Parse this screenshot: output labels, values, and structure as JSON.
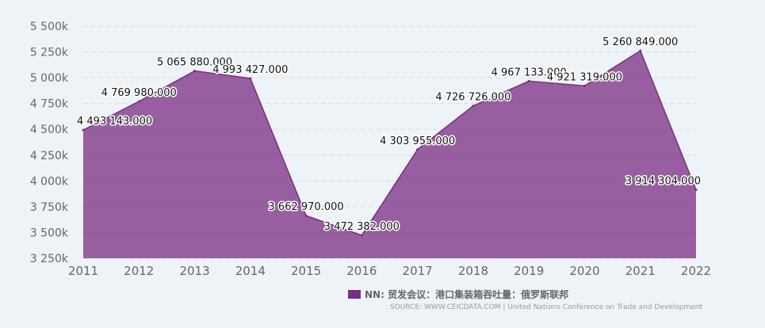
{
  "chart_data": {
    "type": "area",
    "x": [
      "2011",
      "2012",
      "2013",
      "2014",
      "2015",
      "2016",
      "2017",
      "2018",
      "2019",
      "2020",
      "2021",
      "2022"
    ],
    "series": [
      {
        "name": "NN: 贸发会议：港口集装箱吞吐量：俄罗斯联邦",
        "values": [
          4493143.0,
          4769980.0,
          5065880.0,
          4993427.0,
          3662970.0,
          3472382.0,
          4303955.0,
          4726726.0,
          4967133.0,
          4921319.0,
          5260849.0,
          3914304.0
        ],
        "labels": [
          "4 493 143.000",
          "4 769 980.000",
          "5 065 880.000",
          "4 993 427.000",
          "3 662 970.000",
          "3 472 382.000",
          "4 303 955.000",
          "4 726 726.000",
          "4 967 133.000",
          "4 921 319.000",
          "5 260 849.000",
          "3 914 304.000"
        ],
        "color": "#7b2d83"
      }
    ],
    "yticks": [
      3250000,
      3500000,
      3750000,
      4000000,
      4250000,
      4500000,
      4750000,
      5000000,
      5250000,
      5500000
    ],
    "ytick_labels": [
      "3 250k",
      "3 500k",
      "3 750k",
      "4 000k",
      "4 250k",
      "4 500k",
      "4 750k",
      "5 000k",
      "5 250k",
      "5 500k"
    ],
    "ylim": [
      3250000,
      5500000
    ],
    "grid": true,
    "legend": "bottom-right"
  },
  "footer": {
    "legend_label": "NN: 贸发会议：港口集装箱吞吐量：俄罗斯联邦",
    "source": "SOURCE: WWW.CEICDATA.COM | United Nations Conference on Trade and Development"
  }
}
